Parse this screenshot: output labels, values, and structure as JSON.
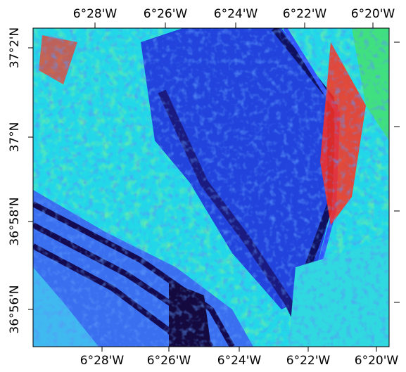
{
  "map": {
    "top_ticks": [
      "6°28'W",
      "6°26'W",
      "6°24'W",
      "6°22'W",
      "6°20'W"
    ],
    "bottom_ticks": [
      "6°28'W",
      "6°26'W",
      "6°24'W",
      "6°22'W",
      "6°20'W"
    ],
    "left_ticks": [
      "37°2'N",
      "37°N",
      "36°58'N",
      "36°56'N"
    ]
  }
}
